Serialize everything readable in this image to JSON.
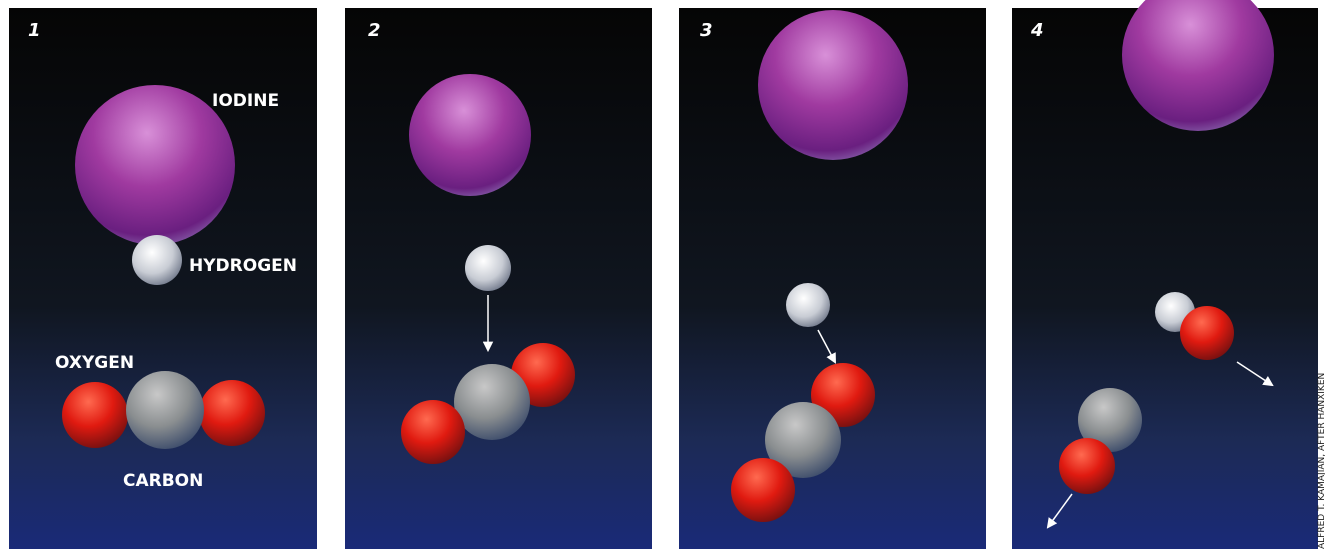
{
  "panels": [
    {
      "number": "1",
      "labels": {
        "iodine": "IODINE",
        "hydrogen": "HYDROGEN",
        "oxygen": "OXYGEN",
        "carbon": "CARBON"
      }
    },
    {
      "number": "2"
    },
    {
      "number": "3"
    },
    {
      "number": "4"
    }
  ],
  "credit": "ALFRED T. KAMAJIAN, AFTER HANXIKEN"
}
